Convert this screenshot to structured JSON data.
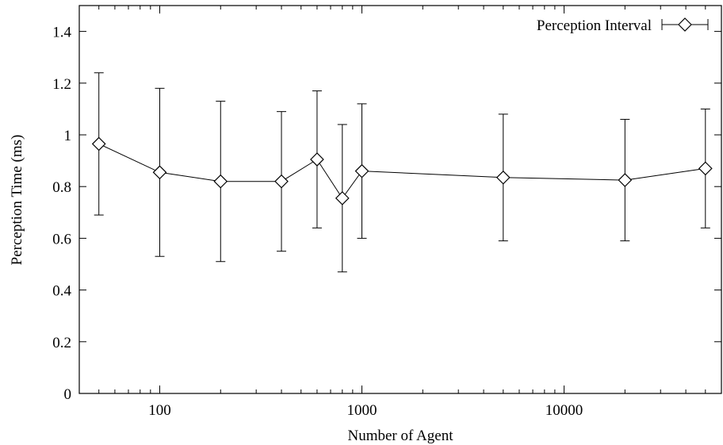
{
  "chart_data": {
    "type": "line",
    "xlabel": "Number of Agent",
    "ylabel": "Perception Time (ms)",
    "x_scale": "log",
    "xlim": [
      40,
      60000
    ],
    "ylim": [
      0,
      1.5
    ],
    "x_ticks": [
      {
        "value": 100,
        "label": "100"
      },
      {
        "value": 1000,
        "label": "1000"
      },
      {
        "value": 10000,
        "label": "10000"
      }
    ],
    "y_ticks": [
      {
        "value": 0,
        "label": "0"
      },
      {
        "value": 0.2,
        "label": "0.2"
      },
      {
        "value": 0.4,
        "label": "0.4"
      },
      {
        "value": 0.6,
        "label": "0.6"
      },
      {
        "value": 0.8,
        "label": "0.8"
      },
      {
        "value": 1,
        "label": "1"
      },
      {
        "value": 1.2,
        "label": "1.2"
      },
      {
        "value": 1.4,
        "label": "1.4"
      }
    ],
    "grid": false,
    "legend_position": "top-right",
    "series": [
      {
        "name": "Perception Interval",
        "marker": "diamond",
        "color": "#000000",
        "points": [
          {
            "x": 50,
            "y": 0.965,
            "low": 0.69,
            "high": 1.24
          },
          {
            "x": 100,
            "y": 0.855,
            "low": 0.53,
            "high": 1.18
          },
          {
            "x": 200,
            "y": 0.82,
            "low": 0.51,
            "high": 1.13
          },
          {
            "x": 400,
            "y": 0.82,
            "low": 0.55,
            "high": 1.09
          },
          {
            "x": 600,
            "y": 0.905,
            "low": 0.64,
            "high": 1.17
          },
          {
            "x": 800,
            "y": 0.755,
            "low": 0.47,
            "high": 1.04
          },
          {
            "x": 1000,
            "y": 0.86,
            "low": 0.6,
            "high": 1.12
          },
          {
            "x": 5000,
            "y": 0.835,
            "low": 0.59,
            "high": 1.08
          },
          {
            "x": 20000,
            "y": 0.825,
            "low": 0.59,
            "high": 1.06
          },
          {
            "x": 50000,
            "y": 0.87,
            "low": 0.64,
            "high": 1.1
          }
        ]
      }
    ]
  }
}
